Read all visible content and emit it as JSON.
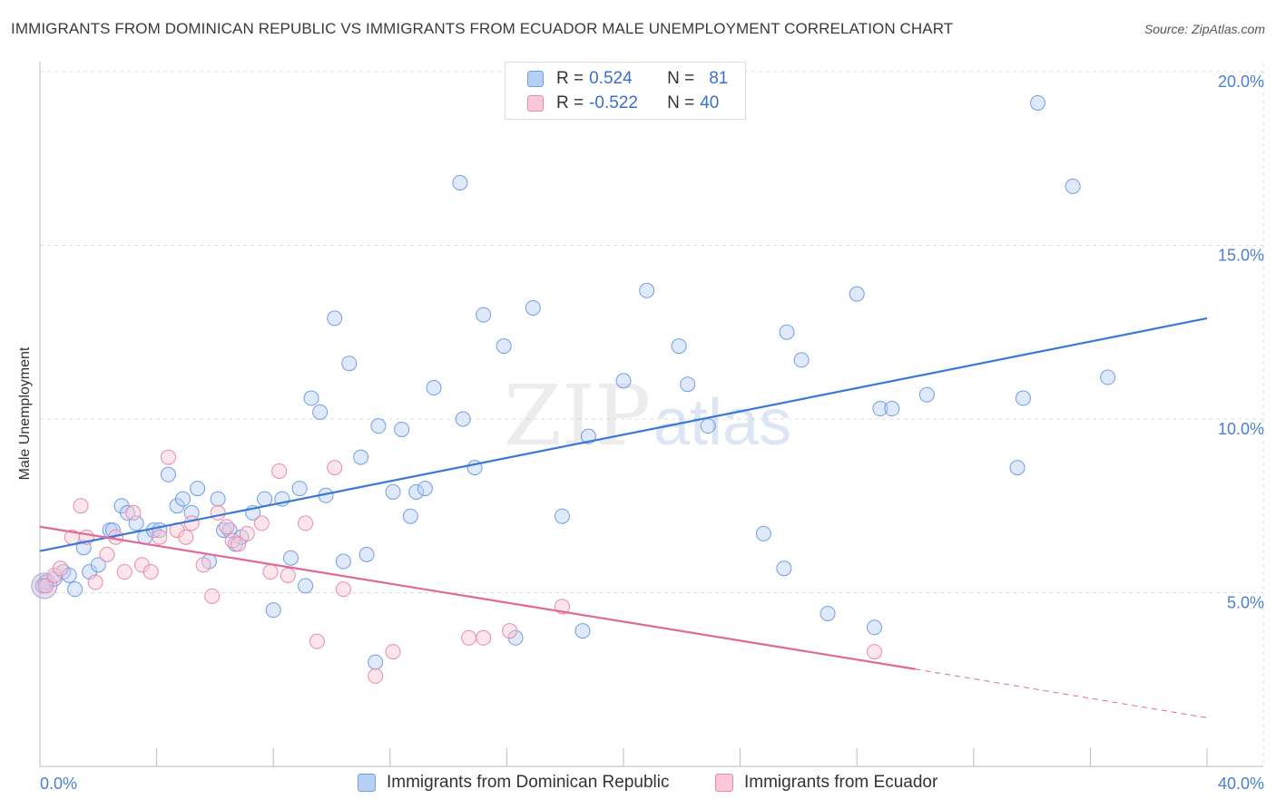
{
  "title": "IMMIGRANTS FROM DOMINICAN REPUBLIC VS IMMIGRANTS FROM ECUADOR MALE UNEMPLOYMENT CORRELATION CHART",
  "source": "Source: ZipAtlas.com",
  "watermark": {
    "zip": "ZIP",
    "atlas": "atlas"
  },
  "legend": {
    "r_label": "R =",
    "n_label": "N =",
    "rows": [
      {
        "r": "0.524",
        "n": "81",
        "fill": "#b7cff3",
        "stroke": "#6f9ee6"
      },
      {
        "r": "-0.522",
        "n": "40",
        "fill": "#f9c7d5",
        "stroke": "#ea8aa8"
      }
    ]
  },
  "bottom_legend": [
    "Immigrants from Dominican Republic",
    "Immigrants from Ecuador"
  ],
  "colors": {
    "blue": "#3a78d6",
    "pink": "#e0689a",
    "blue_fill": "#b7cff3",
    "pink_fill": "#f9c7d5",
    "axis_text": "#4a7fd4"
  },
  "chart_data": {
    "type": "scatter",
    "title": "IMMIGRANTS FROM DOMINICAN REPUBLIC VS IMMIGRANTS FROM ECUADOR MALE UNEMPLOYMENT CORRELATION CHART",
    "xlabel": "",
    "ylabel": "Male Unemployment",
    "xlim": [
      0,
      40
    ],
    "ylim": [
      0,
      20
    ],
    "x_tick_labels": [
      {
        "value": 0,
        "label": "0.0%"
      },
      {
        "value": 40,
        "label": "40.0%"
      }
    ],
    "y_tick_labels": [
      {
        "value": 5,
        "label": "5.0%"
      },
      {
        "value": 10,
        "label": "10.0%"
      },
      {
        "value": 15,
        "label": "15.0%"
      },
      {
        "value": 20,
        "label": "20.0%"
      }
    ],
    "grid": true,
    "series": [
      {
        "name": "Immigrants from Dominican Republic",
        "color": "#3a78d6",
        "trend": {
          "x0": 0,
          "y0": 6.2,
          "x1": 40,
          "y1": 12.9
        },
        "points": [
          [
            0.2,
            5.3
          ],
          [
            0.5,
            5.4
          ],
          [
            0.8,
            5.6
          ],
          [
            1.2,
            5.1
          ],
          [
            1.5,
            6.3
          ],
          [
            1.7,
            5.6
          ],
          [
            2.0,
            5.8
          ],
          [
            2.4,
            6.8
          ],
          [
            2.5,
            6.8
          ],
          [
            2.8,
            7.5
          ],
          [
            3.0,
            7.3
          ],
          [
            3.3,
            7.0
          ],
          [
            3.6,
            6.6
          ],
          [
            3.9,
            6.8
          ],
          [
            4.1,
            6.8
          ],
          [
            4.4,
            8.4
          ],
          [
            4.7,
            7.5
          ],
          [
            4.9,
            7.7
          ],
          [
            5.2,
            7.3
          ],
          [
            5.4,
            8.0
          ],
          [
            5.8,
            5.9
          ],
          [
            6.1,
            7.7
          ],
          [
            6.3,
            6.8
          ],
          [
            6.5,
            6.8
          ],
          [
            6.7,
            6.4
          ],
          [
            6.9,
            6.6
          ],
          [
            7.3,
            7.3
          ],
          [
            7.7,
            7.7
          ],
          [
            8.0,
            4.5
          ],
          [
            8.3,
            7.7
          ],
          [
            8.6,
            6.0
          ],
          [
            8.9,
            8.0
          ],
          [
            9.1,
            5.2
          ],
          [
            9.3,
            10.6
          ],
          [
            9.6,
            10.2
          ],
          [
            9.8,
            7.8
          ],
          [
            10.1,
            12.9
          ],
          [
            10.4,
            5.9
          ],
          [
            10.6,
            11.6
          ],
          [
            11.0,
            8.9
          ],
          [
            11.2,
            6.1
          ],
          [
            11.5,
            3.0
          ],
          [
            11.6,
            9.8
          ],
          [
            12.1,
            7.9
          ],
          [
            12.4,
            9.7
          ],
          [
            12.7,
            7.2
          ],
          [
            12.9,
            7.9
          ],
          [
            13.2,
            8.0
          ],
          [
            13.5,
            10.9
          ],
          [
            14.4,
            16.8
          ],
          [
            14.5,
            10.0
          ],
          [
            14.9,
            8.6
          ],
          [
            15.2,
            13.0
          ],
          [
            15.9,
            12.1
          ],
          [
            16.3,
            3.7
          ],
          [
            16.9,
            13.2
          ],
          [
            17.9,
            7.2
          ],
          [
            18.6,
            3.9
          ],
          [
            18.8,
            9.5
          ],
          [
            20.0,
            11.1
          ],
          [
            20.8,
            13.7
          ],
          [
            21.9,
            12.1
          ],
          [
            22.2,
            11.0
          ],
          [
            22.9,
            9.8
          ],
          [
            24.8,
            6.7
          ],
          [
            25.5,
            5.7
          ],
          [
            25.6,
            12.5
          ],
          [
            26.1,
            11.7
          ],
          [
            27.0,
            4.4
          ],
          [
            28.0,
            13.6
          ],
          [
            28.6,
            4.0
          ],
          [
            28.8,
            10.3
          ],
          [
            29.2,
            10.3
          ],
          [
            30.4,
            10.7
          ],
          [
            33.5,
            8.6
          ],
          [
            33.7,
            10.6
          ],
          [
            34.2,
            19.1
          ],
          [
            35.4,
            16.7
          ],
          [
            36.6,
            11.2
          ],
          [
            0.1,
            5.2
          ],
          [
            1.0,
            5.5
          ]
        ]
      },
      {
        "name": "Immigrants from Ecuador",
        "color": "#e0689a",
        "trend": {
          "x0": 0,
          "y0": 6.9,
          "x1": 30,
          "y1": 2.8,
          "dash_to": {
            "x": 40,
            "y": 1.4
          }
        },
        "points": [
          [
            0.2,
            5.2
          ],
          [
            0.5,
            5.5
          ],
          [
            0.7,
            5.7
          ],
          [
            1.1,
            6.6
          ],
          [
            1.4,
            7.5
          ],
          [
            1.6,
            6.6
          ],
          [
            1.9,
            5.3
          ],
          [
            2.3,
            6.1
          ],
          [
            2.6,
            6.6
          ],
          [
            2.9,
            5.6
          ],
          [
            3.2,
            7.3
          ],
          [
            3.5,
            5.8
          ],
          [
            3.8,
            5.6
          ],
          [
            4.1,
            6.6
          ],
          [
            4.4,
            8.9
          ],
          [
            4.7,
            6.8
          ],
          [
            5.0,
            6.6
          ],
          [
            5.2,
            7.0
          ],
          [
            5.6,
            5.8
          ],
          [
            5.9,
            4.9
          ],
          [
            6.1,
            7.3
          ],
          [
            6.4,
            6.9
          ],
          [
            6.6,
            6.5
          ],
          [
            6.8,
            6.4
          ],
          [
            7.1,
            6.7
          ],
          [
            7.6,
            7.0
          ],
          [
            7.9,
            5.6
          ],
          [
            8.2,
            8.5
          ],
          [
            8.5,
            5.5
          ],
          [
            9.1,
            7.0
          ],
          [
            9.5,
            3.6
          ],
          [
            10.1,
            8.6
          ],
          [
            10.4,
            5.1
          ],
          [
            11.5,
            2.6
          ],
          [
            12.1,
            3.3
          ],
          [
            14.7,
            3.7
          ],
          [
            15.2,
            3.7
          ],
          [
            16.1,
            3.9
          ],
          [
            17.9,
            4.6
          ],
          [
            28.6,
            3.3
          ]
        ]
      }
    ]
  }
}
